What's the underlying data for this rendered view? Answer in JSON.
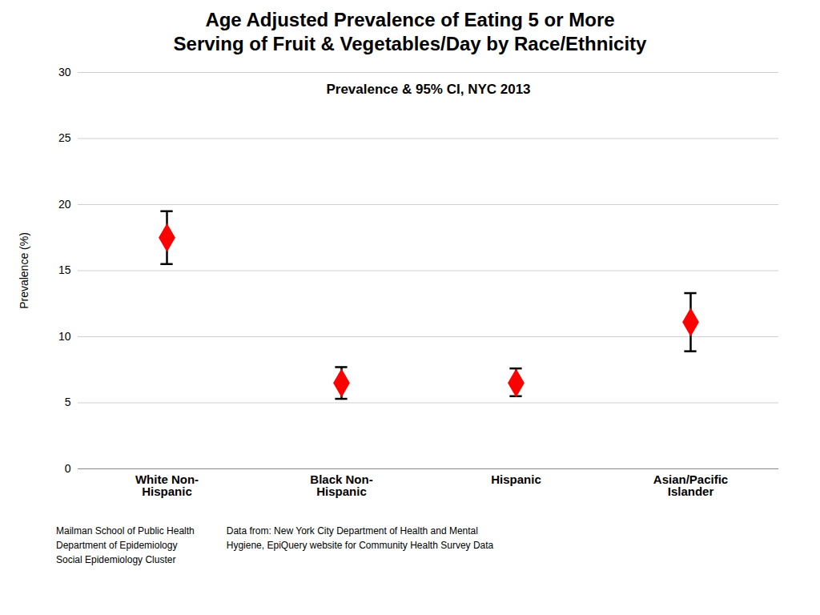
{
  "chart_data": {
    "type": "dot",
    "title": "Age Adjusted Prevalence of Eating 5 or More\nServing of Fruit & Vegetables/Day by Race/Ethnicity",
    "annotation": "Prevalence & 95% CI, NYC 2013",
    "ylabel": "Prevalence (%)",
    "categories": [
      "White Non-\nHispanic",
      "Black Non-\nHispanic",
      "Hispanic",
      "Asian/Pacific\nIslander"
    ],
    "values": [
      17.5,
      6.5,
      6.5,
      11.1
    ],
    "ci_lower": [
      15.5,
      5.3,
      5.5,
      8.9
    ],
    "ci_upper": [
      19.5,
      7.7,
      7.6,
      13.3
    ],
    "ylim": [
      0,
      30
    ],
    "yticks": [
      0,
      5,
      10,
      15,
      20,
      25,
      30
    ],
    "grid": true,
    "color": "#ff0000",
    "marker": "diamond",
    "footer_left": "Mailman School of Public Health\nDepartment of Epidemiology\nSocial Epidemiology Cluster",
    "footer_right": "Data from: New York City Department of Health and Mental\nHygiene, EpiQuery website for Community Health Survey Data"
  }
}
